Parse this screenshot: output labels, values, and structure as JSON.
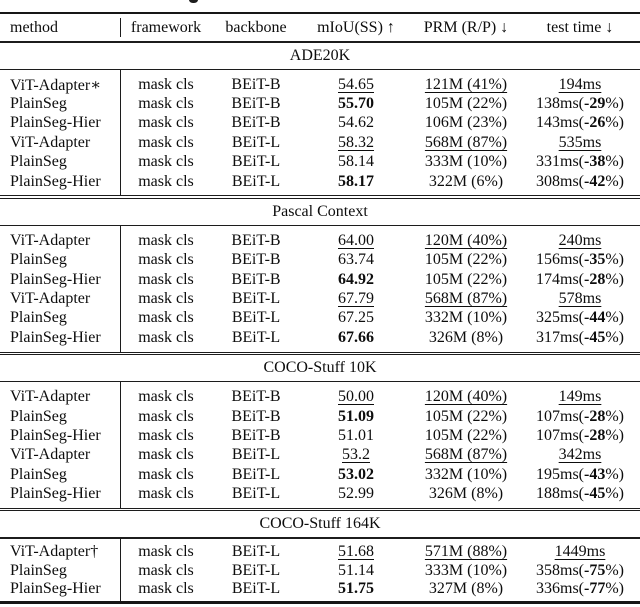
{
  "table": {
    "columns": [
      "method",
      "framework",
      "backbone",
      "mIoU(SS) ↑",
      "PRM (R/P) ↓",
      "test time ↓"
    ],
    "sections": [
      {
        "title": "ADE20K",
        "rows": [
          {
            "method": "ViT-Adapter∗",
            "framework": "mask cls",
            "backbone": "BEiT-B",
            "miou": {
              "text": "54.65",
              "style": "underline"
            },
            "prm": {
              "text": "121M (41%)",
              "style": "underline"
            },
            "time": {
              "pre": "194ms",
              "bold": "",
              "post": "",
              "style": "underline"
            }
          },
          {
            "method": "PlainSeg",
            "framework": "mask cls",
            "backbone": "BEiT-B",
            "miou": {
              "text": "55.70",
              "style": "bold"
            },
            "prm": {
              "text": "105M (22%)",
              "style": "normal"
            },
            "time": {
              "pre": "138ms(",
              "bold": "-29",
              "post": "%)",
              "style": "normal"
            }
          },
          {
            "method": "PlainSeg-Hier",
            "framework": "mask cls",
            "backbone": "BEiT-B",
            "miou": {
              "text": "54.62",
              "style": "normal"
            },
            "prm": {
              "text": "106M (23%)",
              "style": "normal"
            },
            "time": {
              "pre": "143ms(",
              "bold": "-26",
              "post": "%)",
              "style": "normal"
            }
          },
          {
            "method": "ViT-Adapter",
            "framework": "mask cls",
            "backbone": "BEiT-L",
            "miou": {
              "text": "58.32",
              "style": "underline"
            },
            "prm": {
              "text": "568M (87%)",
              "style": "underline"
            },
            "time": {
              "pre": "535ms",
              "bold": "",
              "post": "",
              "style": "underline"
            }
          },
          {
            "method": "PlainSeg",
            "framework": "mask cls",
            "backbone": "BEiT-L",
            "miou": {
              "text": "58.14",
              "style": "normal"
            },
            "prm": {
              "text": "333M (10%)",
              "style": "normal"
            },
            "time": {
              "pre": "331ms(",
              "bold": "-38",
              "post": "%)",
              "style": "normal"
            }
          },
          {
            "method": "PlainSeg-Hier",
            "framework": "mask cls",
            "backbone": "BEiT-L",
            "miou": {
              "text": "58.17",
              "style": "bold"
            },
            "prm": {
              "text": "322M (6%)",
              "style": "normal"
            },
            "time": {
              "pre": "308ms(",
              "bold": "-42",
              "post": "%)",
              "style": "normal"
            }
          }
        ]
      },
      {
        "title": "Pascal Context",
        "rows": [
          {
            "method": "ViT-Adapter",
            "framework": "mask cls",
            "backbone": "BEiT-B",
            "miou": {
              "text": "64.00",
              "style": "underline"
            },
            "prm": {
              "text": "120M (40%)",
              "style": "underline"
            },
            "time": {
              "pre": "240ms",
              "bold": "",
              "post": "",
              "style": "underline"
            }
          },
          {
            "method": "PlainSeg",
            "framework": "mask cls",
            "backbone": "BEiT-B",
            "miou": {
              "text": "63.74",
              "style": "normal"
            },
            "prm": {
              "text": "105M (22%)",
              "style": "normal"
            },
            "time": {
              "pre": "156ms(",
              "bold": "-35",
              "post": "%)",
              "style": "normal"
            }
          },
          {
            "method": "PlainSeg-Hier",
            "framework": "mask cls",
            "backbone": "BEiT-B",
            "miou": {
              "text": "64.92",
              "style": "bold"
            },
            "prm": {
              "text": "105M (22%)",
              "style": "normal"
            },
            "time": {
              "pre": "174ms(",
              "bold": "-28",
              "post": "%)",
              "style": "normal"
            }
          },
          {
            "method": "ViT-Adapter",
            "framework": "mask cls",
            "backbone": "BEiT-L",
            "miou": {
              "text": "67.79",
              "style": "underline"
            },
            "prm": {
              "text": "568M (87%)",
              "style": "underline"
            },
            "time": {
              "pre": "578ms",
              "bold": "",
              "post": "",
              "style": "underline"
            }
          },
          {
            "method": "PlainSeg",
            "framework": "mask cls",
            "backbone": "BEiT-L",
            "miou": {
              "text": "67.25",
              "style": "normal"
            },
            "prm": {
              "text": "332M (10%)",
              "style": "normal"
            },
            "time": {
              "pre": "325ms(",
              "bold": "-44",
              "post": "%)",
              "style": "normal"
            }
          },
          {
            "method": "PlainSeg-Hier",
            "framework": "mask cls",
            "backbone": "BEiT-L",
            "miou": {
              "text": "67.66",
              "style": "bold"
            },
            "prm": {
              "text": "326M (8%)",
              "style": "normal"
            },
            "time": {
              "pre": "317ms(",
              "bold": "-45",
              "post": "%)",
              "style": "normal"
            }
          }
        ]
      },
      {
        "title": "COCO-Stuff 10K",
        "rows": [
          {
            "method": "ViT-Adapter",
            "framework": "mask cls",
            "backbone": "BEiT-B",
            "miou": {
              "text": "50.00",
              "style": "underline"
            },
            "prm": {
              "text": "120M (40%)",
              "style": "underline"
            },
            "time": {
              "pre": "149ms",
              "bold": "",
              "post": "",
              "style": "underline"
            }
          },
          {
            "method": "PlainSeg",
            "framework": "mask cls",
            "backbone": "BEiT-B",
            "miou": {
              "text": "51.09",
              "style": "bold"
            },
            "prm": {
              "text": "105M (22%)",
              "style": "normal"
            },
            "time": {
              "pre": "107ms(",
              "bold": "-28",
              "post": "%)",
              "style": "normal"
            }
          },
          {
            "method": "PlainSeg-Hier",
            "framework": "mask cls",
            "backbone": "BEiT-B",
            "miou": {
              "text": "51.01",
              "style": "normal"
            },
            "prm": {
              "text": "105M (22%)",
              "style": "normal"
            },
            "time": {
              "pre": "107ms(",
              "bold": "-28",
              "post": "%)",
              "style": "normal"
            }
          },
          {
            "method": "ViT-Adapter",
            "framework": "mask cls",
            "backbone": "BEiT-L",
            "miou": {
              "text": "53.2",
              "style": "underline"
            },
            "prm": {
              "text": "568M (87%)",
              "style": "underline"
            },
            "time": {
              "pre": "342ms",
              "bold": "",
              "post": "",
              "style": "underline"
            }
          },
          {
            "method": "PlainSeg",
            "framework": "mask cls",
            "backbone": "BEiT-L",
            "miou": {
              "text": "53.02",
              "style": "bold"
            },
            "prm": {
              "text": "332M (10%)",
              "style": "normal"
            },
            "time": {
              "pre": "195ms(",
              "bold": "-43",
              "post": "%)",
              "style": "normal"
            }
          },
          {
            "method": "PlainSeg-Hier",
            "framework": "mask cls",
            "backbone": "BEiT-L",
            "miou": {
              "text": "52.99",
              "style": "normal"
            },
            "prm": {
              "text": "326M (8%)",
              "style": "normal"
            },
            "time": {
              "pre": "188ms(",
              "bold": "-45",
              "post": "%)",
              "style": "normal"
            }
          }
        ]
      },
      {
        "title": "COCO-Stuff 164K",
        "rows": [
          {
            "method": "ViT-Adapter†",
            "framework": "mask cls",
            "backbone": "BEiT-L",
            "miou": {
              "text": "51.68",
              "style": "underline"
            },
            "prm": {
              "text": "571M (88%)",
              "style": "underline"
            },
            "time": {
              "pre": "1449ms",
              "bold": "",
              "post": "",
              "style": "underline"
            }
          },
          {
            "method": "PlainSeg",
            "framework": "mask cls",
            "backbone": "BEiT-L",
            "miou": {
              "text": "51.14",
              "style": "normal"
            },
            "prm": {
              "text": "333M (10%)",
              "style": "normal"
            },
            "time": {
              "pre": "358ms(",
              "bold": "-75",
              "post": "%)",
              "style": "normal"
            }
          },
          {
            "method": "PlainSeg-Hier",
            "framework": "mask cls",
            "backbone": "BEiT-L",
            "miou": {
              "text": "51.75",
              "style": "bold"
            },
            "prm": {
              "text": "327M (8%)",
              "style": "normal"
            },
            "time": {
              "pre": "336ms(",
              "bold": "-77",
              "post": "%)",
              "style": "normal"
            }
          }
        ]
      }
    ]
  }
}
